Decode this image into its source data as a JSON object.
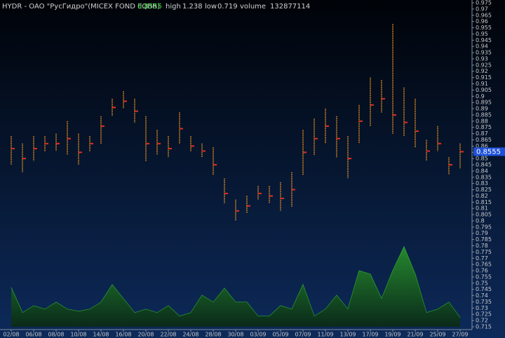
{
  "chart_data": {
    "type": "price_range",
    "title": "HYDR - OAO \"РусГидро\"(MICEX FOND EQBR)",
    "last": 0.8555,
    "high_label": "high",
    "high": 1.238,
    "low_label": "low",
    "low": 0.719,
    "volume_label": "volume",
    "volume_total": 132877114,
    "categories": [
      "02/08",
      null,
      "06/08",
      null,
      "08/08",
      null,
      "10/08",
      null,
      "14/08",
      null,
      "16/08",
      null,
      "20/08",
      null,
      "22/08",
      null,
      "24/08",
      null,
      "28/08",
      null,
      "30/08",
      null,
      "03/09",
      null,
      "05/09",
      null,
      "07/09",
      null,
      "11/09",
      null,
      "13/09",
      null,
      "17/09",
      null,
      "19/09",
      null,
      "21/09",
      null,
      "25/09",
      null,
      "27/09"
    ],
    "series": [
      {
        "name": "high",
        "color": "#e8901e",
        "values": [
          0.868,
          0.862,
          0.868,
          0.868,
          0.87,
          0.88,
          0.87,
          0.868,
          0.884,
          0.898,
          0.904,
          0.898,
          0.884,
          0.873,
          0.868,
          0.887,
          0.868,
          0.862,
          0.859,
          0.834,
          0.817,
          0.82,
          0.828,
          0.828,
          0.831,
          0.839,
          0.873,
          0.882,
          0.89,
          0.884,
          0.868,
          0.893,
          0.915,
          0.913,
          0.958,
          0.907,
          0.898,
          0.865,
          0.876,
          0.851,
          0.862
        ]
      },
      {
        "name": "low",
        "color": "#e8901e",
        "values": [
          0.845,
          0.839,
          0.848,
          0.856,
          0.856,
          0.853,
          0.845,
          0.856,
          0.862,
          0.884,
          0.89,
          0.879,
          0.848,
          0.853,
          0.851,
          0.862,
          0.856,
          0.851,
          0.837,
          0.814,
          0.8,
          0.806,
          0.817,
          0.814,
          0.808,
          0.811,
          0.837,
          0.853,
          0.862,
          0.851,
          0.834,
          0.862,
          0.876,
          0.887,
          0.87,
          0.868,
          0.859,
          0.848,
          0.856,
          0.837,
          0.842
        ]
      },
      {
        "name": "close",
        "color": "#e03020",
        "values": [
          0.858,
          0.85,
          0.858,
          0.862,
          0.862,
          0.866,
          0.855,
          0.862,
          0.876,
          0.891,
          0.896,
          0.888,
          0.862,
          0.862,
          0.858,
          0.874,
          0.86,
          0.856,
          0.845,
          0.822,
          0.808,
          0.812,
          0.822,
          0.82,
          0.818,
          0.825,
          0.855,
          0.866,
          0.876,
          0.866,
          0.85,
          0.88,
          0.893,
          0.898,
          0.885,
          0.879,
          0.872,
          0.856,
          0.862,
          0.845,
          0.8555
        ]
      }
    ],
    "volume": {
      "color": "#1f8a1f",
      "values": [
        560000000,
        200000000,
        300000000,
        250000000,
        350000000,
        250000000,
        220000000,
        250000000,
        350000000,
        600000000,
        400000000,
        200000000,
        250000000,
        200000000,
        300000000,
        150000000,
        200000000,
        450000000,
        350000000,
        550000000,
        350000000,
        350000000,
        150000000,
        150000000,
        300000000,
        250000000,
        600000000,
        150000000,
        250000000,
        450000000,
        250000000,
        800000000,
        750000000,
        400000000,
        800000000,
        1140000000,
        750000000,
        200000000,
        250000000,
        350000000,
        130000000
      ],
      "ylim": [
        0,
        1250000000
      ]
    },
    "ylim": [
      0.715,
      0.975
    ],
    "yticks": [
      0.975,
      0.97,
      0.965,
      0.96,
      0.955,
      0.95,
      0.945,
      0.94,
      0.935,
      0.93,
      0.925,
      0.92,
      0.915,
      0.91,
      0.905,
      0.9,
      0.895,
      0.89,
      0.885,
      0.88,
      0.875,
      0.87,
      0.865,
      0.86,
      0.855,
      0.85,
      0.845,
      0.84,
      0.835,
      0.83,
      0.825,
      0.82,
      0.815,
      0.81,
      0.805,
      0.8,
      0.795,
      0.79,
      0.785,
      0.78,
      0.775,
      0.77,
      0.765,
      0.76,
      0.755,
      0.75,
      0.745,
      0.74,
      0.735,
      0.73,
      0.725,
      0.72,
      0.715
    ]
  }
}
